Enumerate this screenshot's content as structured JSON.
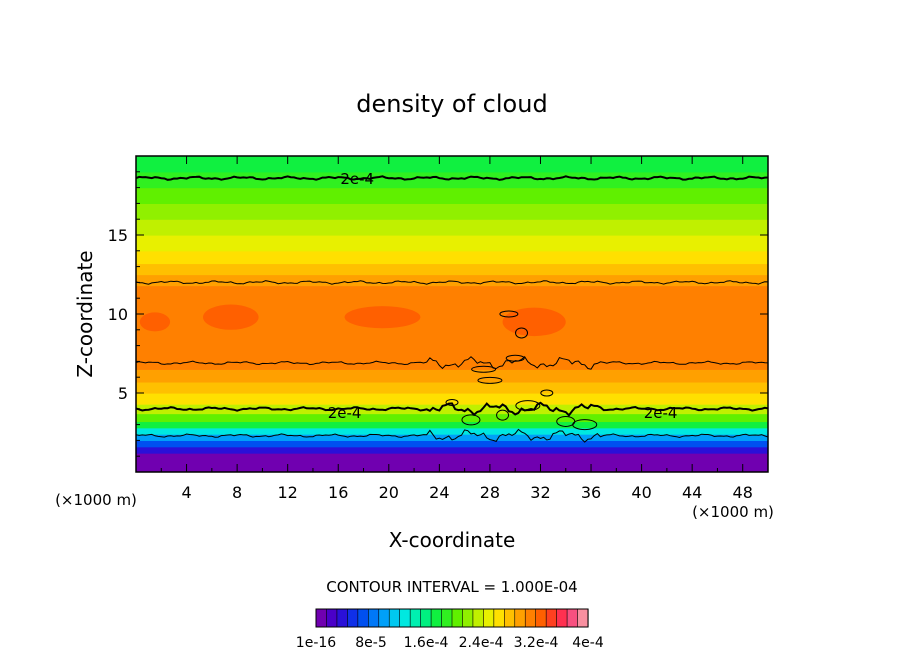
{
  "chart_data": {
    "type": "heatmap",
    "title": "density of cloud",
    "xlabel": "X-coordinate",
    "ylabel": "Z-coordinate",
    "x_unit_left": "(×1000 m)",
    "x_unit_right": "(×1000 m)",
    "xlim": [
      0,
      50
    ],
    "ylim": [
      0,
      20
    ],
    "x_ticks": [
      4,
      8,
      12,
      16,
      20,
      24,
      28,
      32,
      36,
      40,
      44,
      48
    ],
    "y_ticks": [
      5,
      10,
      15
    ],
    "contour_interval_text": "CONTOUR INTERVAL = 1.000E-04",
    "contour_labels": [
      {
        "text": "2e-4",
        "x": 17.5,
        "z": 18.6
      },
      {
        "text": "2e-4",
        "x": 16.5,
        "z": 3.8
      },
      {
        "text": "2e-4",
        "x": 41.5,
        "z": 3.8
      }
    ],
    "colorbar_labels": [
      "1e-16",
      "8e-5",
      "1.6e-4",
      "2.4e-4",
      "3.2e-4",
      "4e-4"
    ],
    "colorbar_colors": [
      "#7000b0",
      "#4a00c8",
      "#2a10d8",
      "#1030e8",
      "#0050f0",
      "#0078f8",
      "#00a0f8",
      "#00c8f0",
      "#00e8e0",
      "#00f0b0",
      "#00f080",
      "#10f040",
      "#30f020",
      "#60f000",
      "#90f000",
      "#c0f000",
      "#e8f000",
      "#ffe000",
      "#ffc000",
      "#ffa000",
      "#ff8000",
      "#ff6000",
      "#ff4020",
      "#ff3050",
      "#f85080",
      "#f890a0"
    ],
    "z_profile": [
      {
        "z": 0.0,
        "c": "#ffffff"
      },
      {
        "z": 1.2,
        "c": "#7000b0"
      },
      {
        "z": 1.6,
        "c": "#2a10d8"
      },
      {
        "z": 2.0,
        "c": "#0050f0"
      },
      {
        "z": 2.4,
        "c": "#00a0f8"
      },
      {
        "z": 2.8,
        "c": "#00e8e0"
      },
      {
        "z": 3.2,
        "c": "#10f040"
      },
      {
        "z": 3.7,
        "c": "#60f000"
      },
      {
        "z": 4.3,
        "c": "#c0f000"
      },
      {
        "z": 5.0,
        "c": "#ffe000"
      },
      {
        "z": 5.7,
        "c": "#ffc000"
      },
      {
        "z": 6.5,
        "c": "#ffa000"
      },
      {
        "z": 7.2,
        "c": "#ff8000"
      },
      {
        "z": 11.8,
        "c": "#ff8000"
      },
      {
        "z": 12.5,
        "c": "#ffa000"
      },
      {
        "z": 13.2,
        "c": "#ffc000"
      },
      {
        "z": 14.0,
        "c": "#ffe000"
      },
      {
        "z": 15.0,
        "c": "#e8f000"
      },
      {
        "z": 16.0,
        "c": "#c0f000"
      },
      {
        "z": 17.0,
        "c": "#90f000"
      },
      {
        "z": 18.0,
        "c": "#60f000"
      },
      {
        "z": 19.0,
        "c": "#30f020"
      },
      {
        "z": 20.0,
        "c": "#10f040"
      }
    ],
    "contour_lines": [
      {
        "z": 18.6,
        "width": 2
      },
      {
        "z": 12.0,
        "width": 1
      },
      {
        "z": 6.9,
        "width": 1
      },
      {
        "z": 4.0,
        "width": 2
      },
      {
        "z": 2.3,
        "width": 1
      }
    ],
    "hot_patches": [
      {
        "x": 7.5,
        "z": 9.8,
        "rx": 2.2,
        "rz": 0.8
      },
      {
        "x": 19.5,
        "z": 9.8,
        "rx": 3.0,
        "rz": 0.7
      },
      {
        "x": 31.5,
        "z": 9.5,
        "rx": 2.5,
        "rz": 0.9
      },
      {
        "x": 1.5,
        "z": 9.5,
        "rx": 1.2,
        "rz": 0.6
      }
    ]
  }
}
